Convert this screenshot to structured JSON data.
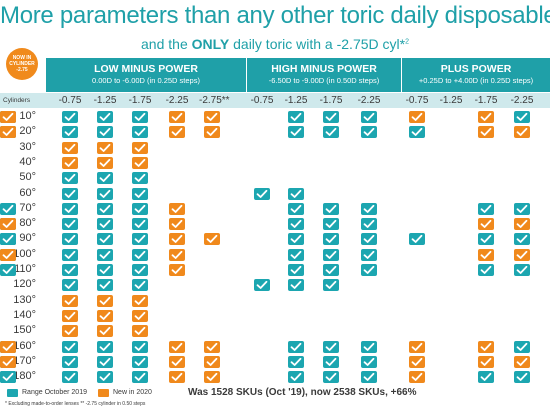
{
  "title": "More parameters than any other toric daily disposable",
  "subtitle": {
    "prefix": "and the",
    "bold": "ONLY",
    "suffix": "daily toric with a -2.75D cyl*",
    "sup": "2"
  },
  "badge": {
    "line1": "NOW IN",
    "line2": "CYLINDER",
    "line3": "-2.75"
  },
  "groups": [
    {
      "name": "LOW MINUS POWER",
      "range": "0.00D to -6.00D (in 0.25D steps)"
    },
    {
      "name": "HIGH MINUS POWER",
      "range": "-6.50D to -9.00D (in 0.50D steps)"
    },
    {
      "name": "PLUS POWER",
      "range": "+0.25D to +4.00D (in 0.25D steps)"
    }
  ],
  "cylinders_label": "Cylinders",
  "cylinders": [
    "-0.75",
    "-1.25",
    "-1.75",
    "-2.25",
    "-2.75**",
    "-0.75",
    "-1.25",
    "-1.75",
    "-2.25",
    "-0.75",
    "-1.25",
    "-1.75",
    "-2.25"
  ],
  "axes": [
    "10°",
    "20°",
    "30°",
    "40°",
    "50°",
    "60°",
    "70°",
    "80°",
    "90°",
    "100°",
    "110°",
    "120°",
    "130°",
    "140°",
    "150°",
    "160°",
    "170°",
    "180°"
  ],
  "colors": {
    "teal": "#1ca6b0",
    "orange": "#f0891c",
    "header": "#1fa0a8",
    "cyl_row": "#cfe9ec"
  },
  "grid": [
    "TTTOO TTTO OTTO",
    "TTTOO TTTT OOTO",
    "OOO",
    "OOO",
    "TTT",
    "TTT  TT",
    "TTTO  TTT  TTT",
    "TTTO  TTT  OOTO",
    "TTTOO TTTT TTTT",
    "TTTO  TTT  OOTO",
    "TTTO  TTT  TTT",
    "TTT  TTT",
    "OOO",
    "OOO",
    "OOO",
    "TTTOO TTTO OTTO",
    "TTTOO TTTO OOTO",
    "TTTOO TTTO TTTT"
  ],
  "legend": {
    "range": "Range October 2019",
    "new": "New in 2020"
  },
  "footnote": "* Excluding made-to-order lenses  ** -2.75 cylinder in 0.50 steps",
  "was_text": "Was 1528 SKUs (Oct '19), now 2538 SKUs, +66%"
}
